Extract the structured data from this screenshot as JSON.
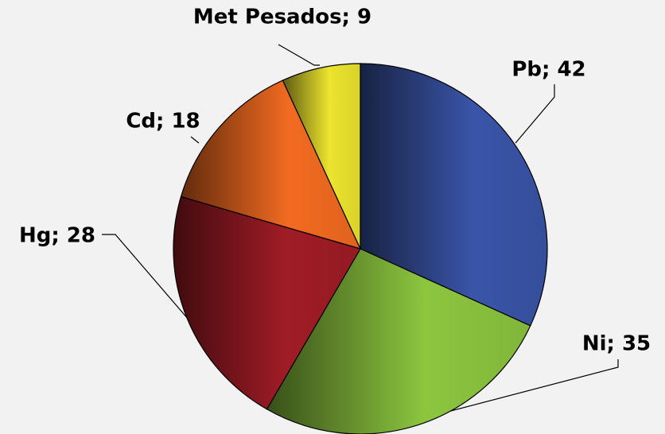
{
  "chart_data": {
    "type": "pie",
    "categories": [
      "Pb",
      "Ni",
      "Hg",
      "Cd",
      "Met Pesados"
    ],
    "values": [
      42,
      35,
      28,
      18,
      9
    ],
    "value_labels": [
      "Pb; 42",
      "Ni; 35",
      "Hg; 28",
      "Cd; 18",
      "Met Pesados; 9"
    ],
    "colors": [
      "#3a55a8",
      "#8cc63f",
      "#a01c26",
      "#f26b21",
      "#ece42e"
    ]
  }
}
